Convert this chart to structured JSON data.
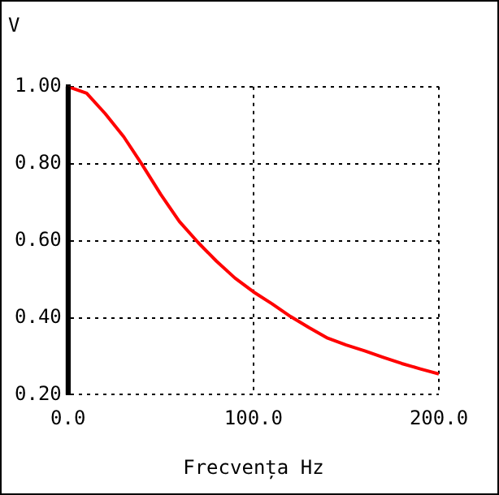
{
  "chart_data": {
    "type": "line",
    "xlabel": "Frecvența Hz",
    "ylabel": "V",
    "x": [
      0,
      10,
      20,
      30,
      40,
      50,
      60,
      70,
      80,
      90,
      100,
      110,
      120,
      130,
      140,
      150,
      160,
      170,
      180,
      190,
      200
    ],
    "series": [
      {
        "color": "#ff0000",
        "values": [
          1.0,
          0.983,
          0.93,
          0.87,
          0.797,
          0.72,
          0.65,
          0.596,
          0.547,
          0.503,
          0.467,
          0.436,
          0.403,
          0.374,
          0.347,
          0.329,
          0.314,
          0.297,
          0.281,
          0.267,
          0.254
        ]
      }
    ],
    "xlim": [
      0,
      200
    ],
    "ylim": [
      0.2,
      1.0
    ],
    "xticks": [
      {
        "value": 0,
        "label": "0.0"
      },
      {
        "value": 100,
        "label": "100.0"
      },
      {
        "value": 200,
        "label": "200.0"
      }
    ],
    "yticks": [
      {
        "value": 0.2,
        "label": "0.20"
      },
      {
        "value": 0.4,
        "label": "0.40"
      },
      {
        "value": 0.6,
        "label": "0.60"
      },
      {
        "value": 0.8,
        "label": "0.80"
      },
      {
        "value": 1.0,
        "label": "1.00"
      }
    ],
    "grid": true,
    "legend": false,
    "marker": "none",
    "line_style": "solid"
  }
}
